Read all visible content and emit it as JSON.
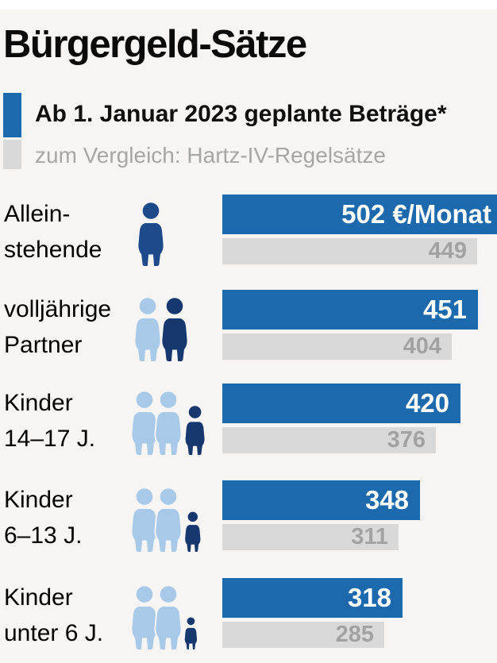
{
  "title": "Bürgergeld-Sätze",
  "legend": {
    "planned_label": "Ab 1. Januar 2023 geplante Beträge*",
    "compare_label": "zum Vergleich: Hartz-IV-Regelsätze"
  },
  "colors": {
    "bar_blue": "#1d69ae",
    "bar_gray": "#d9d9d9",
    "number_gray": "#a2a2a2",
    "person_light_blue": "#a9c9e9",
    "person_dark_navy": "#17386e",
    "person_single_blue": "#1d4a8a",
    "background": "#f6f5f3",
    "top_strip": "#ffffff",
    "text_black": "#0b0b0b",
    "legend_gray_text": "#a6a6a6"
  },
  "rows": [
    {
      "category": "Alleinstehende",
      "label_line1": "Allein-",
      "label_line2": "stehende",
      "planned": 502,
      "planned_label": "502 €/Monat",
      "compare": 449,
      "compare_label": "449",
      "icons": [
        {
          "kind": "adult",
          "tone": "single"
        }
      ]
    },
    {
      "category": "volljährige Partner",
      "label_line1": "volljährige",
      "label_line2": "Partner",
      "planned": 451,
      "planned_label": "451",
      "compare": 404,
      "compare_label": "404",
      "icons": [
        {
          "kind": "adult",
          "tone": "light"
        },
        {
          "kind": "adult",
          "tone": "dark"
        }
      ]
    },
    {
      "category": "Kinder 14–17 J.",
      "label_line1": "Kinder",
      "label_line2": "14–17 J.",
      "planned": 420,
      "planned_label": "420",
      "compare": 376,
      "compare_label": "376",
      "icons": [
        {
          "kind": "adult",
          "tone": "light"
        },
        {
          "kind": "adult",
          "tone": "light"
        },
        {
          "kind": "child",
          "tone": "dark",
          "scale": 0.78
        }
      ]
    },
    {
      "category": "Kinder 6–13 J.",
      "label_line1": "Kinder",
      "label_line2": "6–13 J.",
      "planned": 348,
      "planned_label": "348",
      "compare": 311,
      "compare_label": "311",
      "icons": [
        {
          "kind": "adult",
          "tone": "light"
        },
        {
          "kind": "adult",
          "tone": "light"
        },
        {
          "kind": "child",
          "tone": "dark",
          "scale": 0.64
        }
      ]
    },
    {
      "category": "Kinder unter 6 J.",
      "label_line1": "Kinder",
      "label_line2": "unter 6 J.",
      "planned": 318,
      "planned_label": "318",
      "compare": 285,
      "compare_label": "285",
      "icons": [
        {
          "kind": "adult",
          "tone": "light"
        },
        {
          "kind": "adult",
          "tone": "light"
        },
        {
          "kind": "child",
          "tone": "dark",
          "scale": 0.52
        }
      ]
    }
  ],
  "chart_data": {
    "type": "bar",
    "orientation": "horizontal",
    "title": "Bürgergeld-Sätze",
    "categories": [
      "Alleinstehende",
      "volljährige Partner",
      "Kinder 14–17 J.",
      "Kinder 6–13 J.",
      "Kinder unter 6 J."
    ],
    "series": [
      {
        "name": "Ab 1. Januar 2023 geplante Beträge*",
        "values": [
          502,
          451,
          420,
          348,
          318
        ],
        "color": "#1d69ae"
      },
      {
        "name": "zum Vergleich: Hartz-IV-Regelsätze (Hartz IV)",
        "values": [
          449,
          404,
          376,
          311,
          285
        ],
        "color": "#d9d9d9"
      }
    ],
    "unit": "€/Monat",
    "value_labels_inside_bars": true,
    "axis_visible": false,
    "legend_position": "top-left"
  }
}
